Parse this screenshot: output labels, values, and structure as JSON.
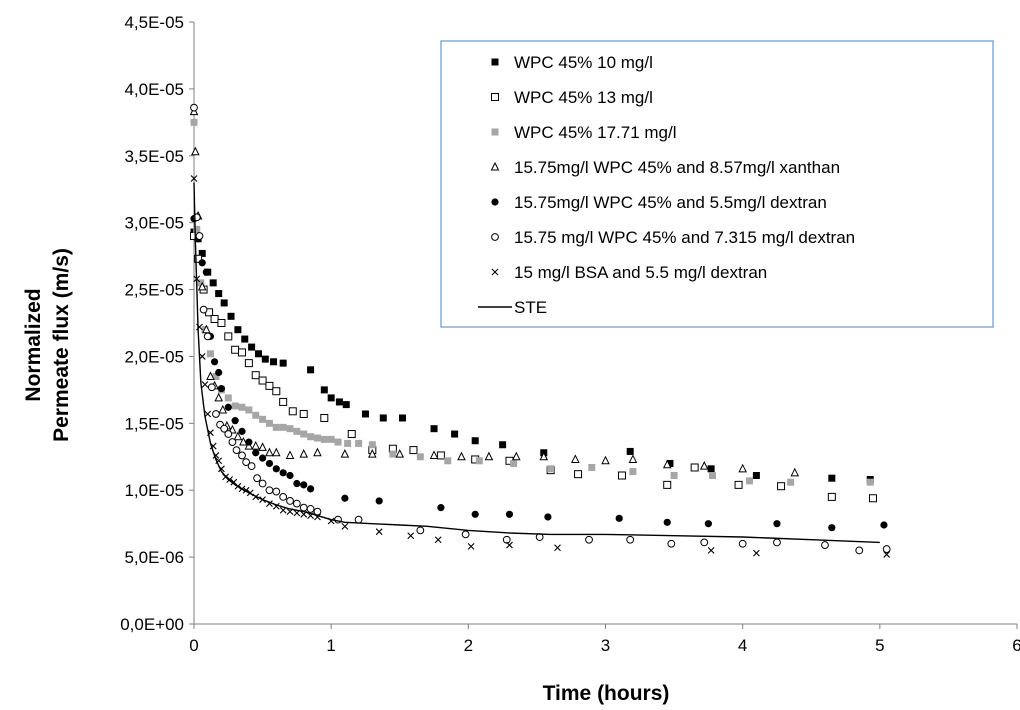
{
  "chart_data": {
    "type": "scatter",
    "title": "",
    "xlabel": "Time (hours)",
    "ylabel_lines": [
      "Normalized",
      "Permeate flux (m/s)"
    ],
    "xlim": [
      0,
      6
    ],
    "ylim": [
      0,
      4.5e-05
    ],
    "x_ticks": [
      "0",
      "1",
      "2",
      "3",
      "4",
      "5",
      "6"
    ],
    "y_ticks": [
      "0,0E+00",
      "5,0E-06",
      "1,0E-05",
      "1,5E-05",
      "2,0E-05",
      "2,5E-05",
      "3,0E-05",
      "3,5E-05",
      "4,0E-05",
      "4,5E-05"
    ],
    "legend_position": "top-right",
    "series": [
      {
        "name": "WPC 45% 10 mg/l",
        "marker": "square-filled",
        "color": "#000000",
        "x": [
          0.0,
          0.03,
          0.06,
          0.1,
          0.14,
          0.18,
          0.22,
          0.27,
          0.32,
          0.37,
          0.42,
          0.47,
          0.52,
          0.58,
          0.65,
          0.85,
          0.95,
          1.0,
          1.06,
          1.11,
          1.25,
          1.38,
          1.52,
          1.75,
          1.9,
          2.05,
          2.25,
          2.55,
          3.18,
          3.47,
          3.77,
          4.1,
          4.65,
          4.93
        ],
        "y": [
          2.93e-05,
          2.88e-05,
          2.77e-05,
          2.63e-05,
          2.55e-05,
          2.47e-05,
          2.4e-05,
          2.3e-05,
          2.2e-05,
          2.13e-05,
          2.07e-05,
          2.02e-05,
          1.98e-05,
          1.96e-05,
          1.95e-05,
          1.9e-05,
          1.75e-05,
          1.69e-05,
          1.66e-05,
          1.64e-05,
          1.57e-05,
          1.54e-05,
          1.54e-05,
          1.46e-05,
          1.42e-05,
          1.37e-05,
          1.34e-05,
          1.28e-05,
          1.29e-05,
          1.2e-05,
          1.16e-05,
          1.11e-05,
          1.09e-05,
          1.08e-05
        ]
      },
      {
        "name": "WPC 45% 13 mg/l",
        "marker": "square-open",
        "color": "#000000",
        "x": [
          0.0,
          0.03,
          0.07,
          0.11,
          0.15,
          0.2,
          0.25,
          0.3,
          0.35,
          0.4,
          0.45,
          0.5,
          0.55,
          0.6,
          0.65,
          0.72,
          0.8,
          0.95,
          1.15,
          1.3,
          1.45,
          1.6,
          1.8,
          2.05,
          2.3,
          2.6,
          2.8,
          3.12,
          3.45,
          3.65,
          3.97,
          4.28,
          4.65,
          4.95
        ],
        "y": [
          2.9e-05,
          2.73e-05,
          2.5e-05,
          2.33e-05,
          2.28e-05,
          2.25e-05,
          2.15e-05,
          2.05e-05,
          2.03e-05,
          1.95e-05,
          1.86e-05,
          1.82e-05,
          1.78e-05,
          1.74e-05,
          1.66e-05,
          1.59e-05,
          1.57e-05,
          1.54e-05,
          1.42e-05,
          1.3e-05,
          1.31e-05,
          1.3e-05,
          1.26e-05,
          1.23e-05,
          1.22e-05,
          1.15e-05,
          1.12e-05,
          1.11e-05,
          1.04e-05,
          1.17e-05,
          1.04e-05,
          1.03e-05,
          9.5e-06,
          9.4e-06
        ]
      },
      {
        "name": "WPC 45% 17.71 mg/l",
        "marker": "square-filled",
        "color": "#a6a6a6",
        "x": [
          0.0,
          0.02,
          0.05,
          0.08,
          0.12,
          0.16,
          0.2,
          0.25,
          0.3,
          0.35,
          0.4,
          0.45,
          0.5,
          0.55,
          0.6,
          0.65,
          0.7,
          0.75,
          0.8,
          0.85,
          0.9,
          0.95,
          1.0,
          1.05,
          1.12,
          1.2,
          1.3,
          1.45,
          1.65,
          1.85,
          2.08,
          2.33,
          2.6,
          2.9,
          3.2,
          3.5,
          3.78,
          4.05,
          4.35,
          4.93
        ],
        "y": [
          3.75e-05,
          2.95e-05,
          2.55e-05,
          2.2e-05,
          2.02e-05,
          1.85e-05,
          1.75e-05,
          1.69e-05,
          1.63e-05,
          1.62e-05,
          1.6e-05,
          1.56e-05,
          1.53e-05,
          1.5e-05,
          1.47e-05,
          1.47e-05,
          1.46e-05,
          1.44e-05,
          1.42e-05,
          1.4e-05,
          1.39e-05,
          1.38e-05,
          1.38e-05,
          1.36e-05,
          1.35e-05,
          1.35e-05,
          1.34e-05,
          1.27e-05,
          1.25e-05,
          1.22e-05,
          1.22e-05,
          1.2e-05,
          1.16e-05,
          1.17e-05,
          1.14e-05,
          1.11e-05,
          1.11e-05,
          1.07e-05,
          1.06e-05,
          1.06e-05
        ]
      },
      {
        "name": "15.75mg/l WPC 45% and 8.57mg/l xanthan",
        "marker": "triangle-open",
        "color": "#000000",
        "x": [
          0.0,
          0.01,
          0.03,
          0.06,
          0.09,
          0.12,
          0.15,
          0.18,
          0.21,
          0.24,
          0.28,
          0.32,
          0.36,
          0.4,
          0.45,
          0.5,
          0.55,
          0.6,
          0.7,
          0.8,
          0.9,
          1.1,
          1.3,
          1.5,
          1.75,
          1.95,
          2.15,
          2.35,
          2.55,
          2.78,
          3.0,
          3.2,
          3.45,
          3.72,
          4.0,
          4.38
        ],
        "y": [
          3.83e-05,
          3.53e-05,
          3.05e-05,
          2.52e-05,
          2.2e-05,
          1.85e-05,
          1.78e-05,
          1.69e-05,
          1.6e-05,
          1.48e-05,
          1.45e-05,
          1.4e-05,
          1.36e-05,
          1.33e-05,
          1.33e-05,
          1.32e-05,
          1.28e-05,
          1.28e-05,
          1.26e-05,
          1.27e-05,
          1.28e-05,
          1.27e-05,
          1.27e-05,
          1.27e-05,
          1.26e-05,
          1.25e-05,
          1.25e-05,
          1.25e-05,
          1.25e-05,
          1.23e-05,
          1.22e-05,
          1.23e-05,
          1.19e-05,
          1.18e-05,
          1.16e-05,
          1.13e-05
        ]
      },
      {
        "name": "15.75mg/l WPC 45% and 5.5mg/l dextran",
        "marker": "circle-filled",
        "color": "#000000",
        "x": [
          0.0,
          0.03,
          0.06,
          0.09,
          0.12,
          0.15,
          0.18,
          0.2,
          0.25,
          0.3,
          0.35,
          0.4,
          0.45,
          0.5,
          0.55,
          0.6,
          0.65,
          0.7,
          0.75,
          0.8,
          0.85,
          1.1,
          1.35,
          1.8,
          2.05,
          2.3,
          2.58,
          3.1,
          3.45,
          3.75,
          4.25,
          4.65,
          5.03
        ],
        "y": [
          3.03e-05,
          2.88e-05,
          2.7e-05,
          2.63e-05,
          2.15e-05,
          1.96e-05,
          1.88e-05,
          1.76e-05,
          1.62e-05,
          1.52e-05,
          1.44e-05,
          1.36e-05,
          1.28e-05,
          1.24e-05,
          1.2e-05,
          1.16e-05,
          1.13e-05,
          1.11e-05,
          1.05e-05,
          1.04e-05,
          1.01e-05,
          9.4e-06,
          9.2e-06,
          8.7e-06,
          8.2e-06,
          8.2e-06,
          8e-06,
          7.9e-06,
          7.6e-06,
          7.5e-06,
          7.5e-06,
          7.2e-06,
          7.4e-06
        ]
      },
      {
        "name": "15.75 mg/l WPC 45% and 7.315 mg/l dextran",
        "marker": "circle-open",
        "color": "#000000",
        "x": [
          0.0,
          0.02,
          0.04,
          0.07,
          0.1,
          0.13,
          0.16,
          0.19,
          0.22,
          0.25,
          0.28,
          0.31,
          0.35,
          0.38,
          0.42,
          0.46,
          0.5,
          0.55,
          0.6,
          0.65,
          0.7,
          0.75,
          0.8,
          0.85,
          0.9,
          1.05,
          1.2,
          1.65,
          1.98,
          2.28,
          2.52,
          2.88,
          3.18,
          3.48,
          3.72,
          4.0,
          4.25,
          4.6,
          4.85,
          5.05
        ],
        "y": [
          3.86e-05,
          3.04e-05,
          2.9e-05,
          2.35e-05,
          2.15e-05,
          1.77e-05,
          1.57e-05,
          1.49e-05,
          1.46e-05,
          1.42e-05,
          1.36e-05,
          1.3e-05,
          1.26e-05,
          1.21e-05,
          1.18e-05,
          1.09e-05,
          1.05e-05,
          1e-05,
          9.9e-06,
          9.5e-06,
          9.2e-06,
          9e-06,
          8.7e-06,
          8.6e-06,
          8.4e-06,
          7.8e-06,
          7.8e-06,
          7e-06,
          6.7e-06,
          6.3e-06,
          6.5e-06,
          6.3e-06,
          6.3e-06,
          6e-06,
          6.1e-06,
          6e-06,
          6.1e-06,
          5.9e-06,
          5.5e-06,
          5.6e-06
        ]
      },
      {
        "name": "15 mg/l BSA and 5.5 mg/l dextran",
        "marker": "x",
        "color": "#000000",
        "x": [
          0.0,
          0.02,
          0.04,
          0.06,
          0.08,
          0.1,
          0.12,
          0.14,
          0.16,
          0.18,
          0.2,
          0.23,
          0.26,
          0.29,
          0.32,
          0.35,
          0.38,
          0.41,
          0.45,
          0.5,
          0.55,
          0.6,
          0.65,
          0.7,
          0.75,
          0.8,
          0.85,
          0.9,
          1.0,
          1.1,
          1.35,
          1.58,
          1.78,
          2.02,
          2.3,
          2.65,
          3.77,
          4.1,
          5.05
        ],
        "y": [
          3.33e-05,
          2.58e-05,
          2.22e-05,
          2e-05,
          1.79e-05,
          1.57e-05,
          1.43e-05,
          1.33e-05,
          1.26e-05,
          1.22e-05,
          1.16e-05,
          1.1e-05,
          1.08e-05,
          1.06e-05,
          1.03e-05,
          1.01e-05,
          1e-05,
          9.8e-06,
          9.5e-06,
          9.3e-06,
          9e-06,
          8.8e-06,
          8.5e-06,
          8.4e-06,
          8.3e-06,
          8.2e-06,
          8.1e-06,
          8e-06,
          7.7e-06,
          7.3e-06,
          6.9e-06,
          6.6e-06,
          6.3e-06,
          5.8e-06,
          5.9e-06,
          5.7e-06,
          5.5e-06,
          5.3e-06,
          5.2e-06
        ]
      },
      {
        "name": "STE",
        "marker": "line",
        "color": "#000000",
        "x": [
          0.0,
          0.01,
          0.03,
          0.05,
          0.08,
          0.12,
          0.16,
          0.2,
          0.25,
          0.3,
          0.4,
          0.5,
          0.6,
          0.7,
          0.8,
          0.9,
          1.0,
          1.1,
          1.3,
          1.5,
          1.7,
          2.0,
          2.3,
          2.6,
          3.0,
          3.5,
          4.0,
          4.5,
          5.0
        ],
        "y": [
          3.3e-05,
          2.85e-05,
          2.2e-05,
          1.8e-05,
          1.55e-05,
          1.35e-05,
          1.23e-05,
          1.14e-05,
          1.08e-05,
          1.04e-05,
          9.8e-06,
          9.3e-06,
          8.9e-06,
          8.6e-06,
          8.4e-06,
          8.1e-06,
          7.8e-06,
          7.6e-06,
          7.5e-06,
          7.4e-06,
          7.3e-06,
          7e-06,
          6.8e-06,
          6.7e-06,
          6.7e-06,
          6.6e-06,
          6.5e-06,
          6.3e-06,
          6.1e-06
        ]
      }
    ]
  }
}
